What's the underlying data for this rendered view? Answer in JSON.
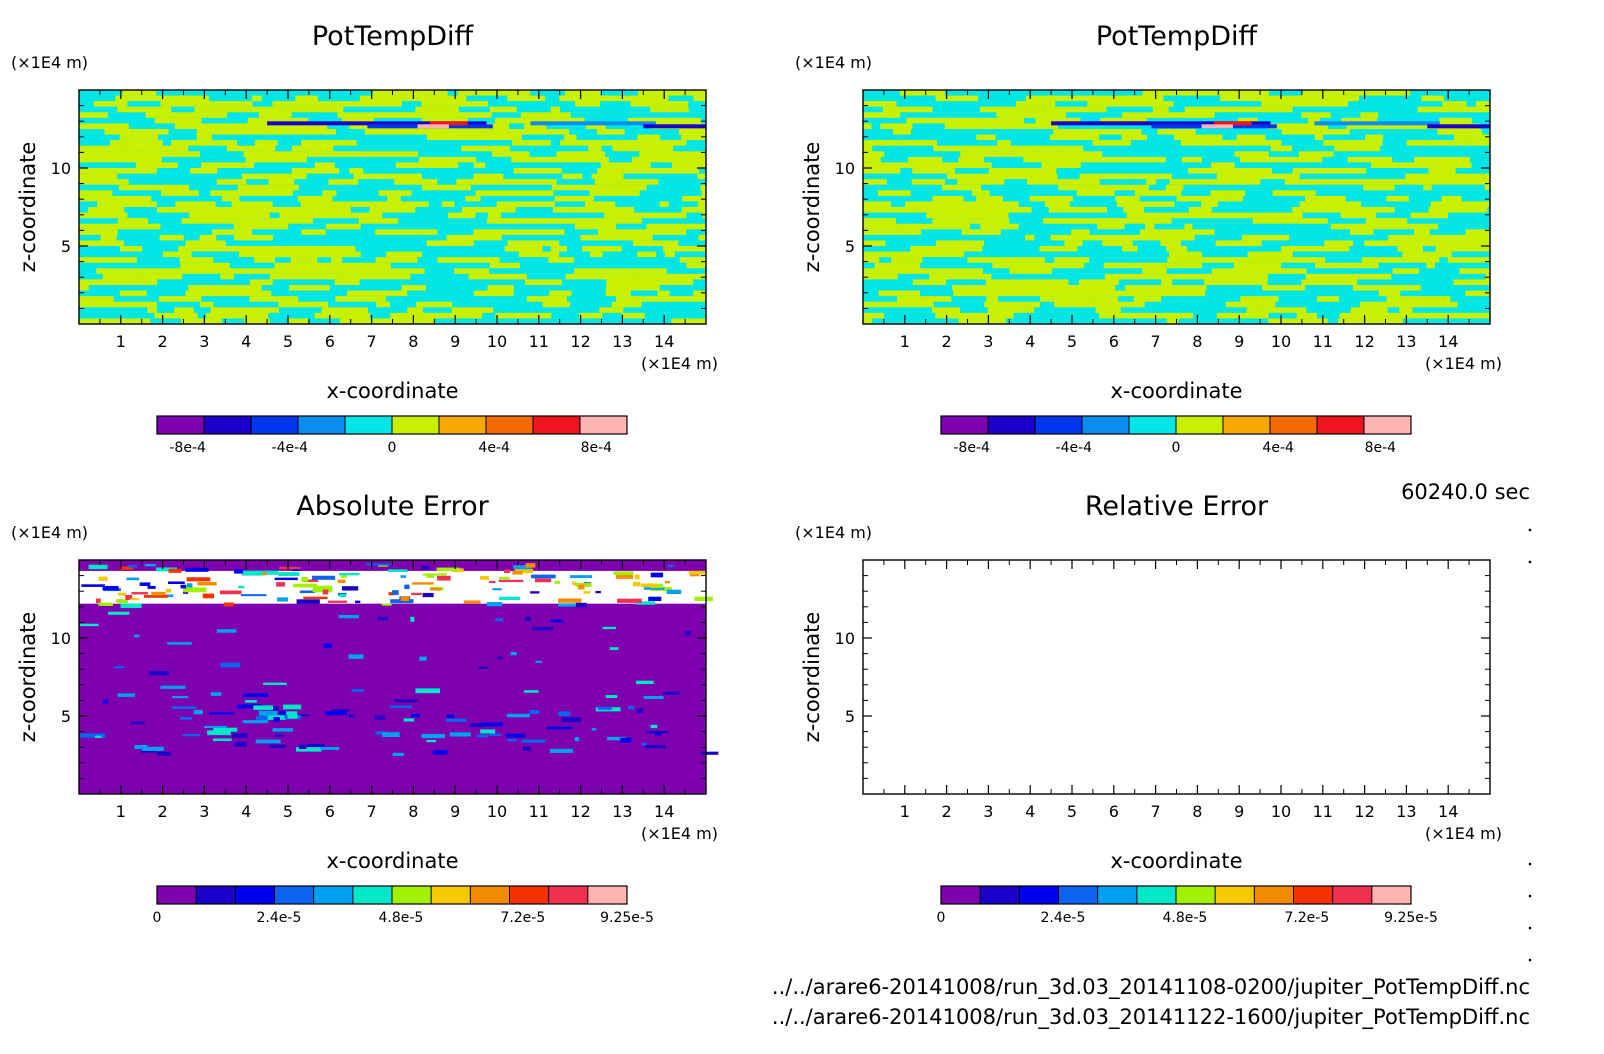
{
  "chart_data": [
    {
      "type": "heatmap",
      "title": "PotTempDiff",
      "xlabel": "x-coordinate",
      "ylabel": "z-coordinate",
      "x_unit": "(×1E4 m)",
      "y_unit": "(×1E4 m)",
      "xlim": [
        0,
        15
      ],
      "ylim": [
        0,
        15
      ],
      "x_ticks": [
        "1",
        "2",
        "3",
        "4",
        "5",
        "6",
        "7",
        "8",
        "9",
        "10",
        "11",
        "12",
        "13",
        "14"
      ],
      "y_ticks": [
        "5",
        "10"
      ],
      "colorbar": {
        "min": -0.00092,
        "max": 0.00092,
        "colors": [
          "#7f00ae",
          "#1a00c8",
          "#0036f2",
          "#0a8cf0",
          "#00e6e6",
          "#c8f000",
          "#f5a800",
          "#f56a00",
          "#f0141e",
          "#ffb4b4"
        ],
        "tick_labels": [
          "-8e-4",
          "-4e-4",
          "0",
          "4e-4",
          "8e-4"
        ],
        "tick_values": [
          -0.0008,
          -0.0004,
          0,
          0.0004,
          0.0008
        ]
      },
      "field": "striped"
    },
    {
      "type": "heatmap",
      "title": "PotTempDiff",
      "xlabel": "x-coordinate",
      "ylabel": "z-coordinate",
      "x_unit": "(×1E4 m)",
      "y_unit": "(×1E4 m)",
      "xlim": [
        0,
        15
      ],
      "ylim": [
        0,
        15
      ],
      "x_ticks": [
        "1",
        "2",
        "3",
        "4",
        "5",
        "6",
        "7",
        "8",
        "9",
        "10",
        "11",
        "12",
        "13",
        "14"
      ],
      "y_ticks": [
        "5",
        "10"
      ],
      "colorbar": {
        "min": -0.00092,
        "max": 0.00092,
        "colors": [
          "#7f00ae",
          "#1a00c8",
          "#0036f2",
          "#0a8cf0",
          "#00e6e6",
          "#c8f000",
          "#f5a800",
          "#f56a00",
          "#f0141e",
          "#ffb4b4"
        ],
        "tick_labels": [
          "-8e-4",
          "-4e-4",
          "0",
          "4e-4",
          "8e-4"
        ],
        "tick_values": [
          -0.0008,
          -0.0004,
          0,
          0.0004,
          0.0008
        ]
      },
      "field": "striped"
    },
    {
      "type": "heatmap",
      "title": "Absolute Error",
      "xlabel": "x-coordinate",
      "ylabel": "z-coordinate",
      "x_unit": "(×1E4 m)",
      "y_unit": "(×1E4 m)",
      "xlim": [
        0,
        15
      ],
      "ylim": [
        0,
        15
      ],
      "x_ticks": [
        "1",
        "2",
        "3",
        "4",
        "5",
        "6",
        "7",
        "8",
        "9",
        "10",
        "11",
        "12",
        "13",
        "14"
      ],
      "y_ticks": [
        "5",
        "10"
      ],
      "colorbar": {
        "min": 0,
        "max": 9.25e-05,
        "colors": [
          "#7f00ae",
          "#1a00c8",
          "#0000f0",
          "#0a64f0",
          "#00a0f0",
          "#00e6c8",
          "#a0f000",
          "#f5c800",
          "#f58c00",
          "#f53200",
          "#f03250",
          "#ffb4b4"
        ],
        "tick_labels": [
          "0",
          "2.4e-5",
          "4.8e-5",
          "7.2e-5",
          "9.25e-5"
        ],
        "tick_values": [
          0,
          2.4e-05,
          4.8e-05,
          7.2e-05,
          9.25e-05
        ]
      },
      "field": "error"
    },
    {
      "type": "heatmap",
      "title": "Relative Error",
      "xlabel": "x-coordinate",
      "ylabel": "z-coordinate",
      "x_unit": "(×1E4 m)",
      "y_unit": "(×1E4 m)",
      "xlim": [
        0,
        15
      ],
      "ylim": [
        0,
        15
      ],
      "x_ticks": [
        "1",
        "2",
        "3",
        "4",
        "5",
        "6",
        "7",
        "8",
        "9",
        "10",
        "11",
        "12",
        "13",
        "14"
      ],
      "y_ticks": [
        "5",
        "10"
      ],
      "colorbar": {
        "min": 0,
        "max": 9.25e-05,
        "colors": [
          "#7f00ae",
          "#1a00c8",
          "#0000f0",
          "#0a64f0",
          "#00a0f0",
          "#00e6c8",
          "#a0f000",
          "#f5c800",
          "#f58c00",
          "#f53200",
          "#f03250",
          "#ffb4b4"
        ],
        "tick_labels": [
          "0",
          "2.4e-5",
          "4.8e-5",
          "7.2e-5",
          "9.25e-5"
        ],
        "tick_values": [
          0,
          2.4e-05,
          4.8e-05,
          7.2e-05,
          9.25e-05
        ]
      },
      "field": "empty"
    }
  ],
  "info": {
    "time": "60240.0 sec",
    "file1": "../../arare6-20141008/run_3d.03_20141108-0200/jupiter_PotTempDiff.nc",
    "file2": "../../arare6-20141008/run_3d.03_20141122-1600/jupiter_PotTempDiff.nc"
  }
}
